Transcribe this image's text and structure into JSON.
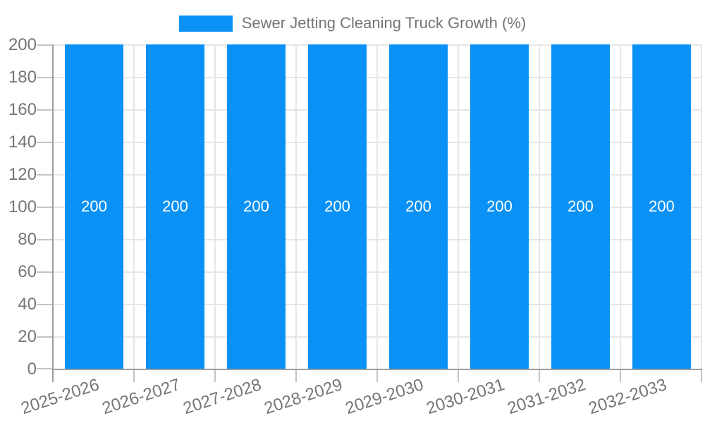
{
  "chart_data": {
    "type": "bar",
    "title": "Sewer Jetting Cleaning Truck Growth (%)",
    "categories": [
      "2025-2026",
      "2026-2027",
      "2027-2028",
      "2028-2029",
      "2029-2030",
      "2030-2031",
      "2031-2032",
      "2032-2033"
    ],
    "values": [
      200,
      200,
      200,
      200,
      200,
      200,
      200,
      200
    ],
    "bar_labels": [
      "200",
      "200",
      "200",
      "200",
      "200",
      "200",
      "200",
      "200"
    ],
    "ytick_labels": [
      "0",
      "20",
      "40",
      "60",
      "80",
      "100",
      "120",
      "140",
      "160",
      "180",
      "200"
    ],
    "ylim": [
      0,
      200
    ],
    "ytick_step": 20,
    "grid": true,
    "legend_position": "top-center",
    "xlabel": "",
    "ylabel": "",
    "colors": {
      "bar": "#0a91f5",
      "bar_label": "#ffffff",
      "axis_text": "#757575",
      "axis_line": "#9e9e9e",
      "gridline": "#e6e6e6",
      "tick": "#c4c4c4",
      "background": "#ffffff"
    }
  }
}
